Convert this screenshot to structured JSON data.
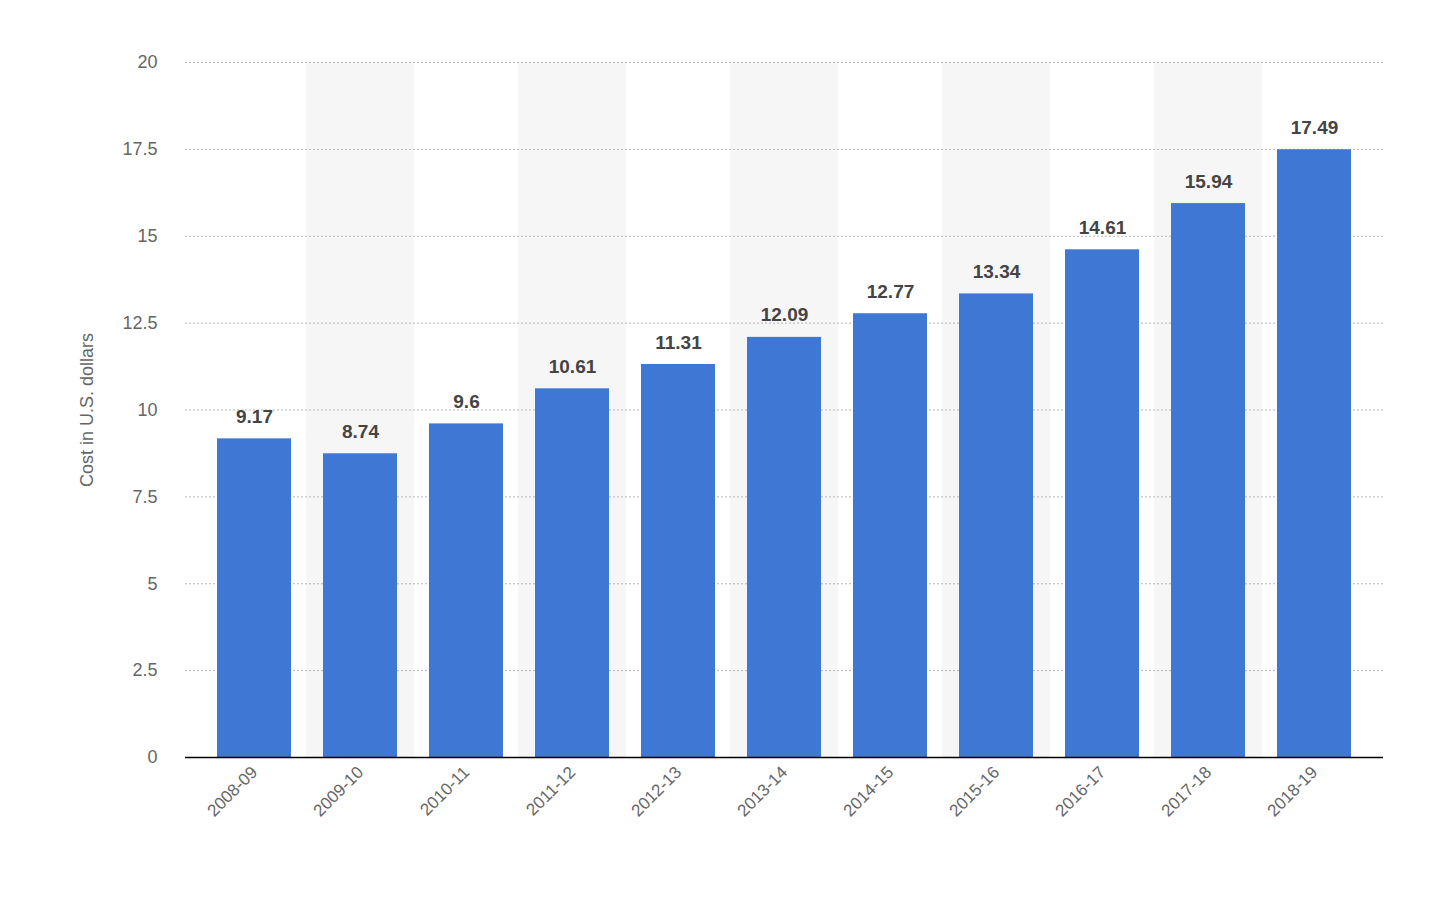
{
  "chart_data": {
    "type": "bar",
    "y_label": "Cost in U.S. dollars",
    "categories": [
      "2008-09",
      "2009-10",
      "2010-11",
      "2011-12",
      "2012-13",
      "2013-14",
      "2014-15",
      "2015-16",
      "2016-17",
      "2017-18",
      "2018-19"
    ],
    "values": [
      9.17,
      8.74,
      9.6,
      10.61,
      11.31,
      12.09,
      12.77,
      13.34,
      14.61,
      15.94,
      17.49
    ],
    "color": "#3f77d4",
    "ylim": [
      0,
      20
    ],
    "yticks": [
      0,
      2.5,
      5,
      7.5,
      10,
      12.5,
      15,
      17.5,
      20
    ],
    "grid": true,
    "data_labels": true
  }
}
